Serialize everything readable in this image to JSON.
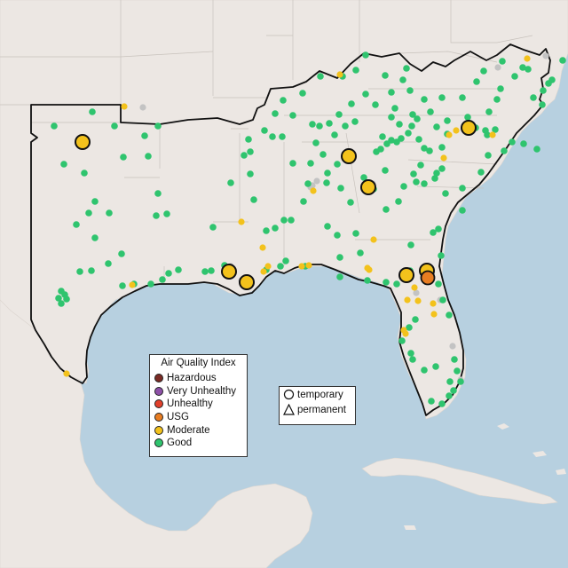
{
  "map": {
    "legend_aqi": {
      "title": "Air Quality Index",
      "items": [
        {
          "label": "Hazardous",
          "color": "#7a2b24"
        },
        {
          "label": "Very Unhealthy",
          "color": "#8e51a8"
        },
        {
          "label": "Unhealthy",
          "color": "#e2402b"
        },
        {
          "label": "USG",
          "color": "#e87d22"
        },
        {
          "label": "Moderate",
          "color": "#f3c21c"
        },
        {
          "label": "Good",
          "color": "#2fc46e"
        }
      ]
    },
    "legend_type": {
      "temporary": "temporary",
      "permanent": "permanent"
    },
    "colors": {
      "water": "#b7d0e0",
      "land": "#ece7e3",
      "no_data": "#c3c3c3"
    }
  }
}
